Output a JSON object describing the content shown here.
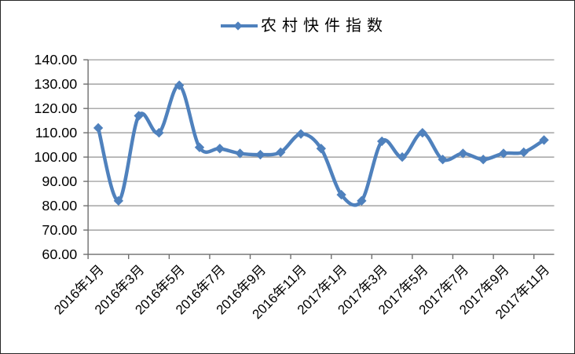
{
  "legend": {
    "label": "农村快件指数"
  },
  "chart_data": {
    "type": "line",
    "title": "",
    "legend_entries": [
      "农村快件指数"
    ],
    "legend_position": "top-center",
    "x": [
      "2016年1月",
      "2016年2月",
      "2016年3月",
      "2016年4月",
      "2016年5月",
      "2016年6月",
      "2016年7月",
      "2016年8月",
      "2016年9月",
      "2016年10月",
      "2016年11月",
      "2016年12月",
      "2017年1月",
      "2017年2月",
      "2017年3月",
      "2017年4月",
      "2017年5月",
      "2017年6月",
      "2017年7月",
      "2017年8月",
      "2017年9月",
      "2017年10月",
      "2017年11月"
    ],
    "x_tick_labels": [
      "2016年1月",
      "2016年3月",
      "2016年5月",
      "2016年7月",
      "2016年9月",
      "2016年11月",
      "2017年1月",
      "2017年3月",
      "2017年5月",
      "2017年7月",
      "2017年9月",
      "2017年11月"
    ],
    "series": [
      {
        "name": "农村快件指数",
        "color": "#4F81BD",
        "marker": "diamond",
        "smooth": true,
        "values": [
          112,
          82,
          117,
          110,
          129.5,
          104,
          103.5,
          101.5,
          101,
          102,
          109.5,
          103.5,
          84.5,
          82,
          106.5,
          100,
          110,
          99,
          101.5,
          99,
          101.5,
          102,
          107
        ]
      }
    ],
    "ylim": [
      60,
      140
    ],
    "ytick_step": 10,
    "y_tick_labels": [
      "60.00",
      "70.00",
      "80.00",
      "90.00",
      "100.00",
      "110.00",
      "120.00",
      "130.00",
      "140.00"
    ],
    "grid": true,
    "grid_color": "#919191",
    "axis_color": "#6e6e6e",
    "text_color": "#000000"
  }
}
